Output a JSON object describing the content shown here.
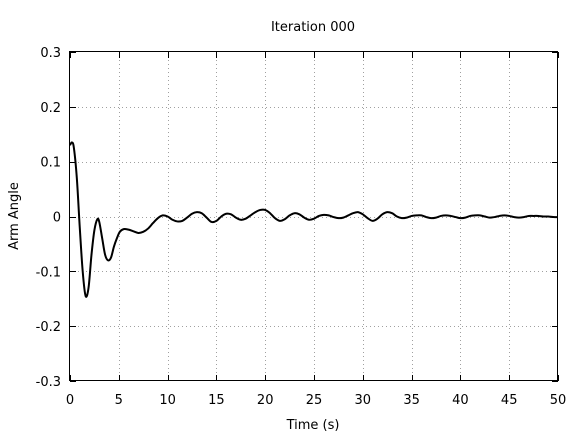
{
  "chart_data": {
    "type": "line",
    "title": "Iteration 000",
    "xlabel": "Time (s)",
    "ylabel": "Arm Angle",
    "xlim": [
      0,
      50
    ],
    "ylim": [
      -0.3,
      0.3
    ],
    "xticks": [
      0,
      5,
      10,
      15,
      20,
      25,
      30,
      35,
      40,
      45,
      50
    ],
    "xtick_labels": [
      "0",
      "5",
      "10",
      "15",
      "20",
      "25",
      "30",
      "35",
      "40",
      "45",
      "50"
    ],
    "yticks": [
      -0.3,
      -0.2,
      -0.1,
      0,
      0.1,
      0.2,
      0.3
    ],
    "ytick_labels": [
      "-0.3",
      "-0.2",
      "-0.1",
      "0",
      "0.1",
      "0.2",
      "0.3"
    ],
    "grid": true,
    "series": [
      {
        "color": "#000000",
        "x": [
          0,
          0.2,
          0.4,
          0.7,
          1.0,
          1.3,
          1.6,
          1.9,
          2.2,
          2.5,
          2.8,
          3.0,
          3.3,
          3.6,
          3.9,
          4.2,
          4.5,
          4.8,
          5.1,
          5.5,
          6.0,
          6.5,
          7.0,
          7.5,
          8.0,
          8.5,
          9.0,
          9.5,
          10.0,
          10.5,
          11.0,
          11.5,
          12.0,
          12.5,
          13.0,
          13.5,
          14.0,
          14.5,
          15.0,
          15.5,
          16.0,
          16.5,
          17.0,
          17.5,
          18.0,
          18.5,
          19.0,
          19.5,
          20.0,
          20.5,
          21.0,
          21.5,
          22.0,
          22.5,
          23.0,
          23.5,
          24.0,
          24.5,
          25.0,
          25.5,
          26.0,
          26.5,
          27.0,
          27.5,
          28.0,
          28.5,
          29.0,
          29.5,
          30.0,
          30.5,
          31.0,
          31.5,
          32.0,
          32.5,
          33.0,
          33.5,
          34.0,
          34.5,
          35.0,
          35.5,
          36.0,
          36.5,
          37.0,
          37.5,
          38.0,
          38.5,
          39.0,
          39.5,
          40.0,
          40.5,
          41.0,
          41.5,
          42.0,
          42.5,
          43.0,
          43.5,
          44.0,
          44.5,
          45.0,
          45.5,
          46.0,
          46.5,
          47.0,
          47.5,
          48.0,
          48.5,
          49.0,
          49.5,
          50.0
        ],
        "y": [
          0.13,
          0.135,
          0.125,
          0.07,
          -0.02,
          -0.1,
          -0.145,
          -0.13,
          -0.07,
          -0.025,
          -0.005,
          -0.01,
          -0.04,
          -0.07,
          -0.08,
          -0.075,
          -0.055,
          -0.04,
          -0.028,
          -0.023,
          -0.024,
          -0.027,
          -0.03,
          -0.028,
          -0.022,
          -0.012,
          -0.003,
          0.002,
          0.0,
          -0.006,
          -0.009,
          -0.008,
          -0.002,
          0.005,
          0.008,
          0.006,
          -0.002,
          -0.01,
          -0.008,
          0.0,
          0.005,
          0.004,
          -0.002,
          -0.006,
          -0.004,
          0.002,
          0.008,
          0.012,
          0.012,
          0.006,
          -0.003,
          -0.008,
          -0.005,
          0.002,
          0.006,
          0.004,
          -0.002,
          -0.006,
          -0.004,
          0.001,
          0.003,
          0.002,
          -0.001,
          -0.003,
          -0.002,
          0.002,
          0.006,
          0.008,
          0.004,
          -0.003,
          -0.008,
          -0.004,
          0.004,
          0.008,
          0.006,
          0.0,
          -0.003,
          -0.002,
          0.001,
          0.002,
          0.002,
          -0.001,
          -0.003,
          -0.002,
          0.001,
          0.002,
          0.001,
          -0.001,
          -0.003,
          -0.002,
          0.001,
          0.002,
          0.002,
          0.0,
          -0.002,
          -0.001,
          0.001,
          0.002,
          0.001,
          -0.001,
          -0.002,
          -0.001,
          0.001,
          0.001,
          0.001,
          0.0,
          0.0,
          -0.001,
          -0.001
        ]
      }
    ]
  }
}
